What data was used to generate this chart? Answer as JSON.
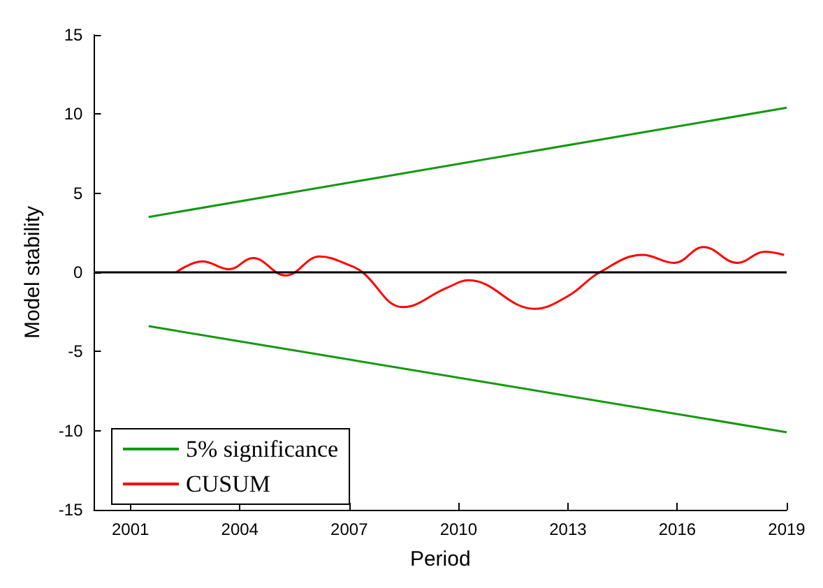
{
  "chart_data": {
    "type": "line",
    "xlabel": "Period",
    "ylabel": "Model stability",
    "xlim": [
      2000,
      2019
    ],
    "xticks": [
      2001,
      2004,
      2007,
      2010,
      2013,
      2016,
      2019
    ],
    "ylim": [
      -15,
      15
    ],
    "yticks": [
      -15,
      -10,
      -5,
      0,
      5,
      10,
      15
    ],
    "grid": false,
    "legend": "bottom left",
    "marker": "none",
    "line_style": "solid",
    "series": [
      {
        "name": "5% significance",
        "color": "#119911",
        "x": [
          2001.5,
          2019
        ],
        "values": [
          3.5,
          10.4
        ]
      },
      {
        "color": "#119911",
        "x": [
          2001.5,
          2019
        ],
        "values": [
          -3.4,
          -10.1
        ]
      },
      {
        "name": "CUSUM",
        "color": "#ff0000",
        "x": [
          2002.25,
          2002.97,
          2003.71,
          2004.36,
          2005.26,
          2006.19,
          2007.06,
          2007.37,
          2008.48,
          2009.66,
          2010.28,
          2012.08,
          2013.0,
          2013.87,
          2015.05,
          2015.92,
          2016.72,
          2017.65,
          2018.4,
          2018.93
        ],
        "values": [
          0,
          0.7,
          0.2,
          0.9,
          -0.2,
          1.0,
          0.4,
          0,
          -2.2,
          -1.0,
          -0.5,
          -2.3,
          -1.5,
          0,
          1.1,
          0.6,
          1.6,
          0.6,
          1.3,
          1.1
        ]
      }
    ],
    "ref_lines": [
      {
        "axis": "y",
        "value": 0,
        "color": "#000000"
      }
    ]
  }
}
